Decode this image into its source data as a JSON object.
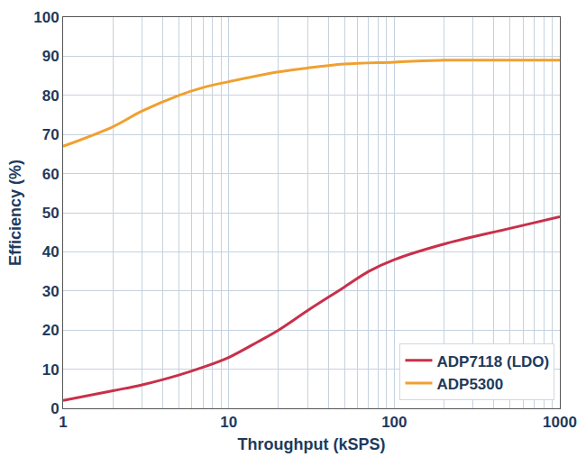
{
  "chart_data": {
    "type": "line",
    "x_label": "Throughput (kSPS)",
    "y_label": "Efficiency (%)",
    "log": "x",
    "grid": true,
    "legend": "lower right",
    "xlim": [
      1,
      1000
    ],
    "xticks": [
      1,
      10,
      100,
      1000
    ],
    "ylim": [
      0,
      100
    ],
    "yticks": [
      0,
      10,
      20,
      30,
      40,
      50,
      60,
      70,
      80,
      90,
      100
    ],
    "series": [
      {
        "name": "ADP7118 (LDO)",
        "color": "#c8304a",
        "x": [
          1,
          2,
          3,
          5,
          7,
          10,
          15,
          20,
          30,
          50,
          70,
          100,
          200,
          500,
          1000
        ],
        "values": [
          2,
          4.5,
          6,
          8.5,
          10.5,
          13,
          17,
          20,
          25,
          31,
          35,
          38,
          42,
          46,
          49
        ]
      },
      {
        "name": "ADP5300",
        "color": "#f0a030",
        "x": [
          1,
          2,
          3,
          5,
          7,
          10,
          20,
          30,
          50,
          100,
          200,
          300,
          500,
          1000
        ],
        "values": [
          67,
          72,
          76,
          80,
          82,
          83.5,
          86,
          87,
          88,
          88.5,
          89,
          89,
          89,
          89
        ]
      }
    ]
  }
}
